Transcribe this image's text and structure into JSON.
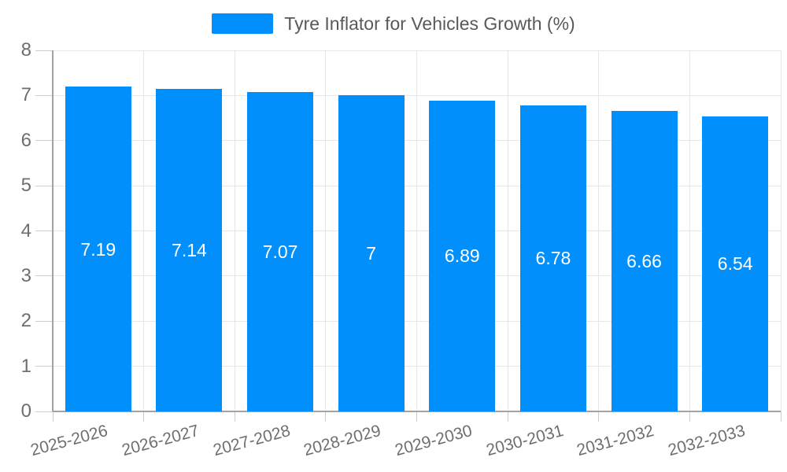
{
  "legend": {
    "label": "Tyre Inflator for Vehicles Growth (%)"
  },
  "chart_data": {
    "type": "bar",
    "title": "Tyre Inflator for Vehicles Growth (%)",
    "categories": [
      "2025-2026",
      "2026-2027",
      "2027-2028",
      "2028-2029",
      "2029-2030",
      "2030-2031",
      "2031-2032",
      "2032-2033"
    ],
    "values": [
      7.19,
      7.14,
      7.07,
      7,
      6.89,
      6.78,
      6.66,
      6.54
    ],
    "labels": [
      "7.19",
      "7.14",
      "7.07",
      "7",
      "6.89",
      "6.78",
      "6.66",
      "6.54"
    ],
    "xlabel": "",
    "ylabel": "",
    "ylim": [
      0,
      8
    ],
    "yticks": [
      0,
      1,
      2,
      3,
      4,
      5,
      6,
      7,
      8
    ],
    "grid": true,
    "legend_position": "top",
    "colors": {
      "bar": "#008FFB",
      "data_label": "#ffffff",
      "axis_text": "#6e6e6e",
      "legend_text": "#58595b",
      "grid_line": "#e7e7e7",
      "tick_line": "#cccccc",
      "axis_line": "#a2a2a2",
      "background": "#ffffff"
    }
  }
}
